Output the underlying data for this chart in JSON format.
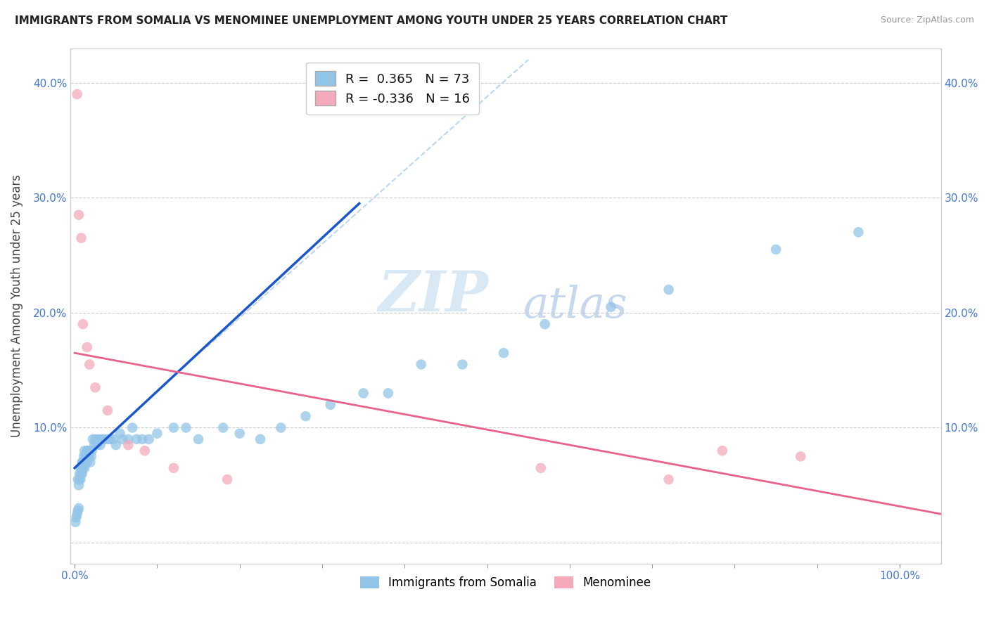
{
  "title": "IMMIGRANTS FROM SOMALIA VS MENOMINEE UNEMPLOYMENT AMONG YOUTH UNDER 25 YEARS CORRELATION CHART",
  "source": "Source: ZipAtlas.com",
  "ylabel": "Unemployment Among Youth under 25 years",
  "xlim": [
    -0.005,
    1.05
  ],
  "ylim": [
    -0.018,
    0.43
  ],
  "yticks": [
    0.0,
    0.1,
    0.2,
    0.3,
    0.4
  ],
  "ytick_labels": [
    "",
    "10.0%",
    "20.0%",
    "30.0%",
    "40.0%"
  ],
  "xtick_labels_left": "0.0%",
  "xtick_labels_right": "100.0%",
  "blue_color": "#92C5E8",
  "pink_color": "#F4AABB",
  "blue_line_color": "#1A56CC",
  "pink_line_color": "#E8628A",
  "diag_line_color": "#AACCEE",
  "watermark_zip": "ZIP",
  "watermark_atlas": "atlas",
  "blue_scatter_x": [
    0.001,
    0.002,
    0.003,
    0.004,
    0.004,
    0.005,
    0.005,
    0.006,
    0.006,
    0.007,
    0.007,
    0.008,
    0.008,
    0.009,
    0.009,
    0.009,
    0.01,
    0.01,
    0.01,
    0.011,
    0.011,
    0.012,
    0.012,
    0.013,
    0.013,
    0.014,
    0.015,
    0.015,
    0.016,
    0.017,
    0.018,
    0.019,
    0.02,
    0.021,
    0.022,
    0.024,
    0.025,
    0.027,
    0.029,
    0.031,
    0.033,
    0.036,
    0.04,
    0.043,
    0.047,
    0.05,
    0.055,
    0.058,
    0.065,
    0.07,
    0.075,
    0.082,
    0.09,
    0.1,
    0.12,
    0.135,
    0.15,
    0.18,
    0.2,
    0.225,
    0.25,
    0.28,
    0.31,
    0.35,
    0.38,
    0.42,
    0.47,
    0.52,
    0.57,
    0.65,
    0.72,
    0.85,
    0.95
  ],
  "blue_scatter_y": [
    0.018,
    0.022,
    0.025,
    0.028,
    0.055,
    0.03,
    0.05,
    0.055,
    0.06,
    0.065,
    0.055,
    0.06,
    0.065,
    0.065,
    0.06,
    0.07,
    0.07,
    0.065,
    0.07,
    0.07,
    0.075,
    0.08,
    0.065,
    0.075,
    0.07,
    0.075,
    0.07,
    0.08,
    0.08,
    0.075,
    0.08,
    0.07,
    0.075,
    0.08,
    0.09,
    0.085,
    0.09,
    0.085,
    0.09,
    0.085,
    0.09,
    0.09,
    0.09,
    0.09,
    0.09,
    0.085,
    0.095,
    0.09,
    0.09,
    0.1,
    0.09,
    0.09,
    0.09,
    0.095,
    0.1,
    0.1,
    0.09,
    0.1,
    0.095,
    0.09,
    0.1,
    0.11,
    0.12,
    0.13,
    0.13,
    0.155,
    0.155,
    0.165,
    0.19,
    0.205,
    0.22,
    0.255,
    0.27
  ],
  "pink_scatter_x": [
    0.003,
    0.005,
    0.008,
    0.01,
    0.015,
    0.018,
    0.025,
    0.04,
    0.065,
    0.085,
    0.12,
    0.185,
    0.565,
    0.72,
    0.785,
    0.88
  ],
  "pink_scatter_y": [
    0.39,
    0.285,
    0.265,
    0.19,
    0.17,
    0.155,
    0.135,
    0.115,
    0.085,
    0.08,
    0.065,
    0.055,
    0.065,
    0.055,
    0.08,
    0.075
  ],
  "blue_line_x": [
    0.0,
    0.345
  ],
  "blue_line_y": [
    0.065,
    0.295
  ],
  "pink_line_x": [
    0.0,
    1.05
  ],
  "pink_line_y": [
    0.165,
    0.025
  ],
  "diag_line_x": [
    0.16,
    0.55
  ],
  "diag_line_y": [
    0.17,
    0.42
  ]
}
